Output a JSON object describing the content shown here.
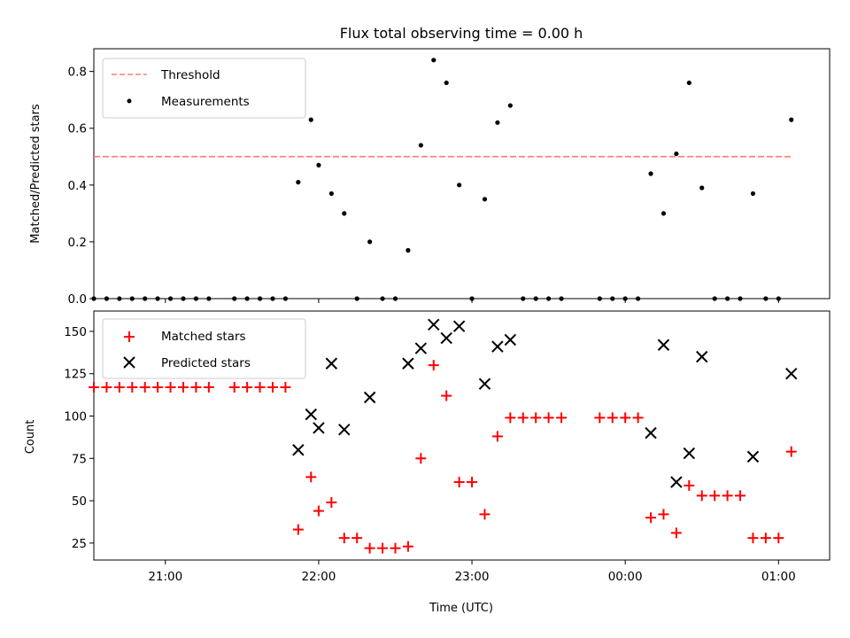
{
  "chart_data": [
    {
      "type": "scatter",
      "title": "Flux total observing time = 0.00 h",
      "xlabel": "",
      "ylabel": "Matched/Predicted stars",
      "xlim": [
        "20:32",
        "01:20"
      ],
      "ylim": [
        0,
        0.88
      ],
      "yticks": [
        "0.0",
        "0.2",
        "0.4",
        "0.6",
        "0.8"
      ],
      "legend_position": "upper-left",
      "grid": false,
      "series": [
        {
          "name": "Threshold",
          "style": "dashed-line",
          "color": "#ff7f7f",
          "points": [
            [
              "20:32",
              0.5
            ],
            [
              "01:05",
              0.5
            ]
          ]
        },
        {
          "name": "Measurements",
          "style": "dot",
          "color": "#000000",
          "points": [
            [
              "20:32",
              0
            ],
            [
              "20:37",
              0
            ],
            [
              "20:42",
              0
            ],
            [
              "20:47",
              0
            ],
            [
              "20:52",
              0
            ],
            [
              "20:57",
              0
            ],
            [
              "21:02",
              0
            ],
            [
              "21:07",
              0
            ],
            [
              "21:12",
              0
            ],
            [
              "21:17",
              0
            ],
            [
              "21:27",
              0
            ],
            [
              "21:32",
              0
            ],
            [
              "21:37",
              0
            ],
            [
              "21:42",
              0
            ],
            [
              "21:47",
              0
            ],
            [
              "21:52",
              0.41
            ],
            [
              "21:57",
              0.63
            ],
            [
              "22:00",
              0.47
            ],
            [
              "22:05",
              0.37
            ],
            [
              "22:10",
              0.3
            ],
            [
              "22:15",
              0
            ],
            [
              "22:20",
              0.2
            ],
            [
              "22:25",
              0
            ],
            [
              "22:30",
              0
            ],
            [
              "22:35",
              0.17
            ],
            [
              "22:40",
              0.54
            ],
            [
              "22:45",
              0.84
            ],
            [
              "22:50",
              0.76
            ],
            [
              "22:55",
              0.4
            ],
            [
              "23:00",
              0
            ],
            [
              "23:05",
              0.35
            ],
            [
              "23:10",
              0.62
            ],
            [
              "23:15",
              0.68
            ],
            [
              "23:20",
              0
            ],
            [
              "23:25",
              0
            ],
            [
              "23:30",
              0
            ],
            [
              "23:35",
              0
            ],
            [
              "23:50",
              0
            ],
            [
              "23:55",
              0
            ],
            [
              "00:00",
              0
            ],
            [
              "00:05",
              0
            ],
            [
              "00:10",
              0.44
            ],
            [
              "00:15",
              0.3
            ],
            [
              "00:20",
              0.51
            ],
            [
              "00:25",
              0.76
            ],
            [
              "00:30",
              0.39
            ],
            [
              "00:35",
              0
            ],
            [
              "00:40",
              0
            ],
            [
              "00:45",
              0
            ],
            [
              "00:50",
              0.37
            ],
            [
              "00:55",
              0
            ],
            [
              "01:00",
              0
            ],
            [
              "01:05",
              0.63
            ]
          ]
        }
      ]
    },
    {
      "type": "scatter",
      "title": "",
      "xlabel": "Time (UTC)",
      "ylabel": "Count",
      "xlim": [
        "20:32",
        "01:20"
      ],
      "ylim": [
        15,
        162
      ],
      "yticks": [
        "25",
        "50",
        "75",
        "100",
        "125",
        "150"
      ],
      "xticks": [
        "21:00",
        "22:00",
        "23:00",
        "00:00",
        "01:00"
      ],
      "legend_position": "upper-left",
      "grid": false,
      "series": [
        {
          "name": "Matched stars",
          "style": "plus",
          "color": "#ff0000",
          "points": [
            [
              "20:32",
              117
            ],
            [
              "20:37",
              117
            ],
            [
              "20:42",
              117
            ],
            [
              "20:47",
              117
            ],
            [
              "20:52",
              117
            ],
            [
              "20:57",
              117
            ],
            [
              "21:02",
              117
            ],
            [
              "21:07",
              117
            ],
            [
              "21:12",
              117
            ],
            [
              "21:17",
              117
            ],
            [
              "21:27",
              117
            ],
            [
              "21:32",
              117
            ],
            [
              "21:37",
              117
            ],
            [
              "21:42",
              117
            ],
            [
              "21:47",
              117
            ],
            [
              "21:52",
              33
            ],
            [
              "21:57",
              64
            ],
            [
              "22:00",
              44
            ],
            [
              "22:05",
              49
            ],
            [
              "22:10",
              28
            ],
            [
              "22:15",
              28
            ],
            [
              "22:20",
              22
            ],
            [
              "22:25",
              22
            ],
            [
              "22:30",
              22
            ],
            [
              "22:35",
              23
            ],
            [
              "22:40",
              75
            ],
            [
              "22:45",
              130
            ],
            [
              "22:50",
              112
            ],
            [
              "22:55",
              61
            ],
            [
              "23:00",
              61
            ],
            [
              "23:05",
              42
            ],
            [
              "23:10",
              88
            ],
            [
              "23:15",
              99
            ],
            [
              "23:20",
              99
            ],
            [
              "23:25",
              99
            ],
            [
              "23:30",
              99
            ],
            [
              "23:35",
              99
            ],
            [
              "23:50",
              99
            ],
            [
              "23:55",
              99
            ],
            [
              "00:00",
              99
            ],
            [
              "00:05",
              99
            ],
            [
              "00:10",
              40
            ],
            [
              "00:15",
              42
            ],
            [
              "00:20",
              31
            ],
            [
              "00:25",
              59
            ],
            [
              "00:30",
              53
            ],
            [
              "00:35",
              53
            ],
            [
              "00:40",
              53
            ],
            [
              "00:45",
              53
            ],
            [
              "00:50",
              28
            ],
            [
              "00:55",
              28
            ],
            [
              "01:00",
              28
            ],
            [
              "01:05",
              79
            ]
          ]
        },
        {
          "name": "Predicted stars",
          "style": "x",
          "color": "#000000",
          "points": [
            [
              "21:52",
              80
            ],
            [
              "21:57",
              101
            ],
            [
              "22:00",
              93
            ],
            [
              "22:05",
              131
            ],
            [
              "22:10",
              92
            ],
            [
              "22:20",
              111
            ],
            [
              "22:35",
              131
            ],
            [
              "22:40",
              140
            ],
            [
              "22:45",
              154
            ],
            [
              "22:50",
              146
            ],
            [
              "22:55",
              153
            ],
            [
              "23:05",
              119
            ],
            [
              "23:10",
              141
            ],
            [
              "23:15",
              145
            ],
            [
              "00:10",
              90
            ],
            [
              "00:15",
              142
            ],
            [
              "00:20",
              61
            ],
            [
              "00:25",
              78
            ],
            [
              "00:30",
              135
            ],
            [
              "00:50",
              76
            ],
            [
              "01:05",
              125
            ]
          ]
        }
      ]
    }
  ]
}
